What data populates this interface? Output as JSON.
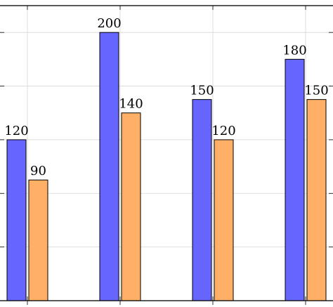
{
  "chart_data": {
    "type": "bar",
    "categories": [
      "",
      "",
      "",
      ""
    ],
    "series": [
      {
        "values": [
          120,
          200,
          150,
          180
        ],
        "color": "#6666ff"
      },
      {
        "values": [
          90,
          140,
          120,
          150
        ],
        "color": "#ffb066"
      }
    ],
    "title": "",
    "xlabel": "",
    "ylabel": "",
    "ylim": [
      0,
      220
    ],
    "grid": true,
    "legend": "none"
  }
}
